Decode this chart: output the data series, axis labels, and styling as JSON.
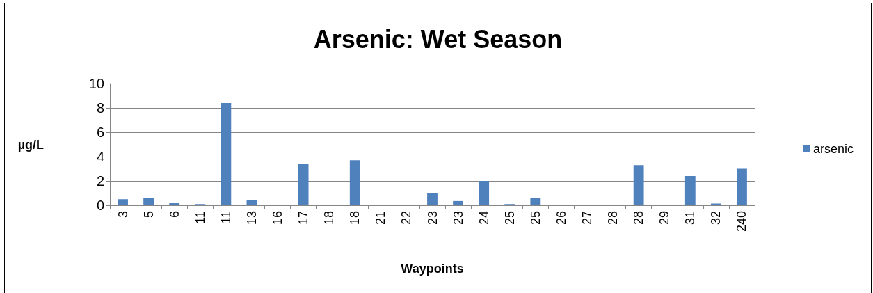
{
  "chart_data": {
    "type": "bar",
    "title": "Arsenic: Wet Season",
    "xlabel": "Waypoints",
    "ylabel": "µg/L",
    "categories": [
      "3",
      "5",
      "6",
      "11",
      "11",
      "13",
      "16",
      "17",
      "18",
      "18",
      "21",
      "22",
      "23",
      "23",
      "24",
      "25",
      "25",
      "26",
      "27",
      "28",
      "28",
      "29",
      "31",
      "32",
      "240"
    ],
    "series": [
      {
        "name": "arsenic",
        "color": "#4f81bd",
        "values": [
          0.5,
          0.6,
          0.2,
          0.1,
          8.4,
          0.4,
          0,
          3.4,
          0,
          3.7,
          0,
          0,
          1.0,
          0.35,
          2.0,
          0.1,
          0.6,
          0,
          0,
          0,
          3.3,
          0,
          2.4,
          0.15,
          3.0
        ]
      }
    ],
    "ylim": [
      0,
      10
    ],
    "yticks": [
      0,
      2,
      4,
      6,
      8,
      10
    ],
    "grid": "y",
    "legend": "right"
  }
}
